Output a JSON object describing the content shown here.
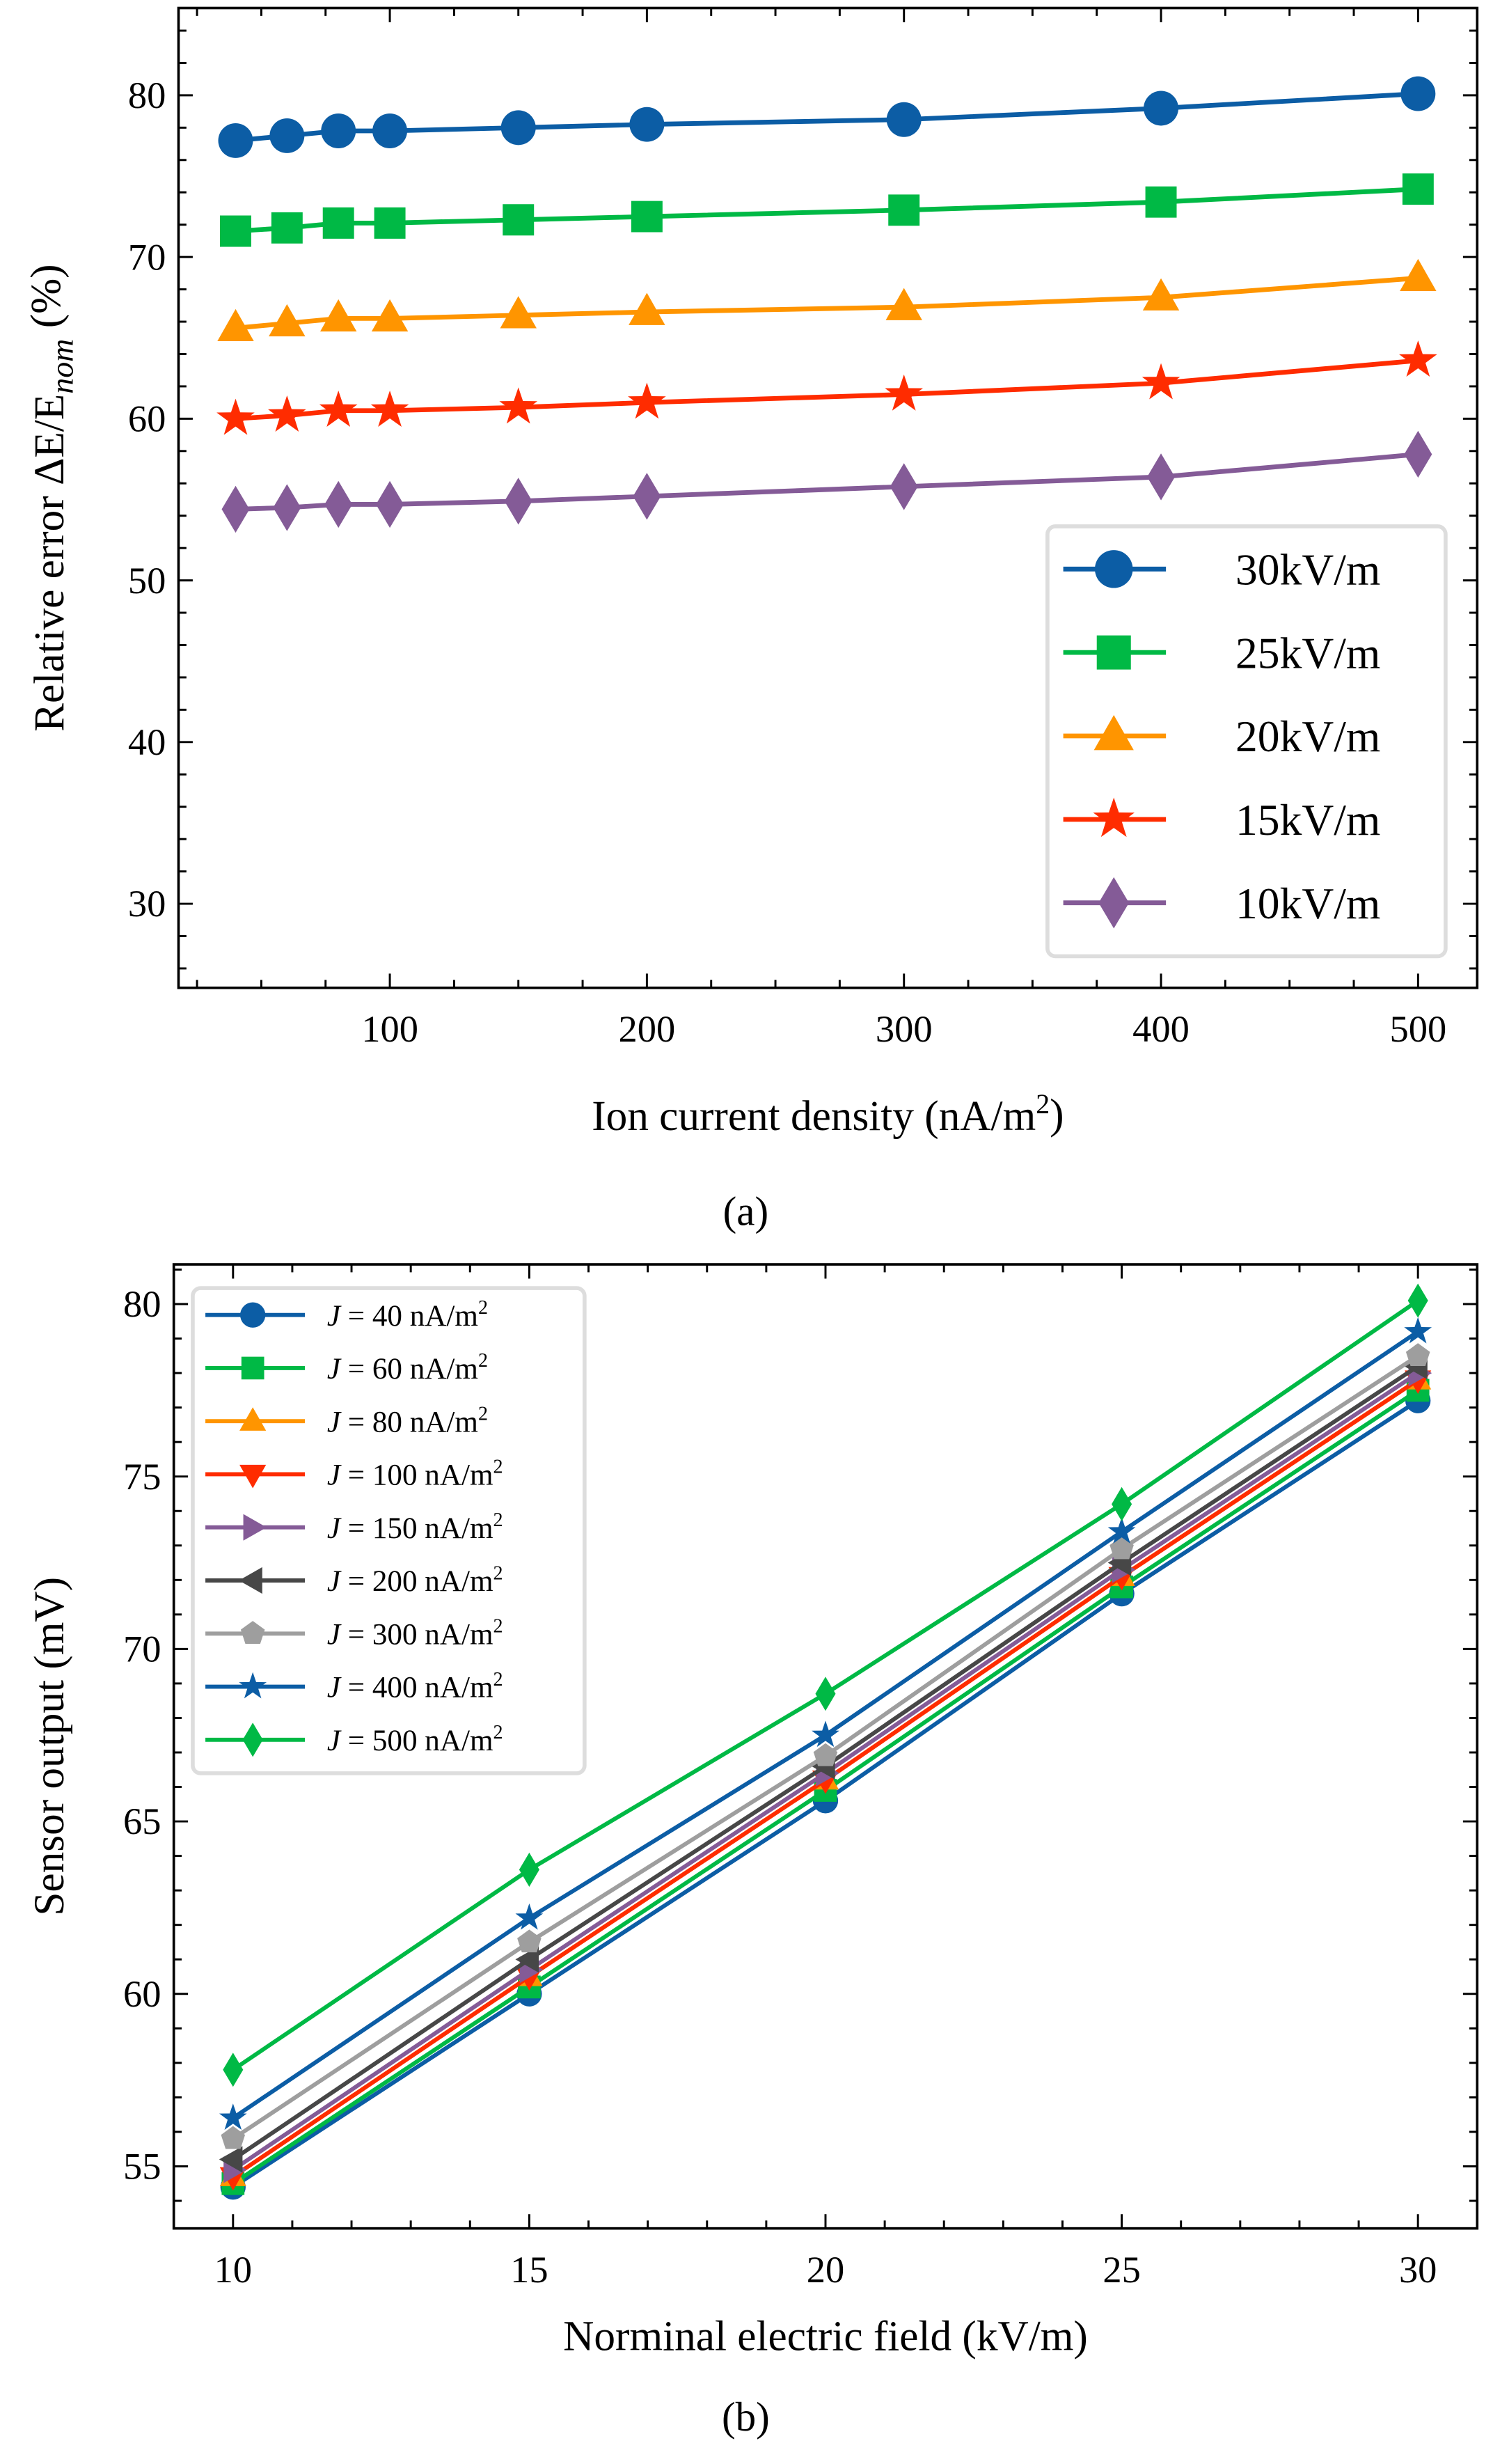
{
  "chart_data": [
    {
      "type": "line",
      "panel_label": "(a)",
      "xlabel": "Ion current density (nA/m2)",
      "ylabel": "Relative error ΔE/E_nom (%)",
      "xlim": [
        17.8,
        523
      ],
      "ylim": [
        24.8,
        85.4
      ],
      "xticks": [
        100,
        200,
        300,
        400,
        500
      ],
      "yticks": [
        30,
        40,
        50,
        60,
        70,
        80
      ],
      "grid": false,
      "legend_position": "bottom-right",
      "x": [
        40,
        60,
        80,
        100,
        150,
        200,
        300,
        400,
        500
      ],
      "series": [
        {
          "name": "30kV/m",
          "color": "#0C5DA5",
          "marker": "circle",
          "values": [
            77.2,
            77.5,
            77.8,
            77.8,
            78.0,
            78.2,
            78.5,
            79.2,
            80.1
          ]
        },
        {
          "name": "25kV/m",
          "color": "#00B945",
          "marker": "square",
          "values": [
            71.6,
            71.8,
            72.1,
            72.1,
            72.3,
            72.5,
            72.9,
            73.4,
            74.2
          ]
        },
        {
          "name": "20kV/m",
          "color": "#FF9500",
          "marker": "triangle-up",
          "values": [
            65.6,
            65.9,
            66.2,
            66.2,
            66.4,
            66.6,
            66.9,
            67.5,
            68.7
          ]
        },
        {
          "name": "15kV/m",
          "color": "#FF2C00",
          "marker": "star",
          "values": [
            60.0,
            60.2,
            60.5,
            60.5,
            60.7,
            61.0,
            61.5,
            62.2,
            63.6
          ]
        },
        {
          "name": "10kV/m",
          "color": "#845B97",
          "marker": "diamond",
          "values": [
            54.4,
            54.5,
            54.7,
            54.7,
            54.9,
            55.2,
            55.8,
            56.4,
            57.8
          ]
        }
      ]
    },
    {
      "type": "line",
      "panel_label": "(b)",
      "xlabel": "Norminal electric field (kV/m)",
      "ylabel": "Sensor output (mV)",
      "xlim": [
        9.0,
        31.0
      ],
      "ylim": [
        53.2,
        81.15
      ],
      "xticks": [
        10,
        15,
        20,
        25,
        30
      ],
      "yticks": [
        55,
        60,
        65,
        70,
        75,
        80
      ],
      "grid": false,
      "legend_position": "top-left",
      "x": [
        10,
        15,
        20,
        25,
        30
      ],
      "series": [
        {
          "name": "J = 40 nA/m2",
          "color": "#0C5DA5",
          "marker": "circle",
          "values": [
            54.4,
            60.0,
            65.6,
            71.6,
            77.2
          ]
        },
        {
          "name": "J = 60 nA/m2",
          "color": "#00B945",
          "marker": "square",
          "values": [
            54.5,
            60.2,
            65.9,
            71.8,
            77.5
          ]
        },
        {
          "name": "J = 80 nA/m2",
          "color": "#FF9500",
          "marker": "triangle-up",
          "values": [
            54.7,
            60.5,
            66.2,
            72.1,
            77.8
          ]
        },
        {
          "name": "J = 100 nA/m2",
          "color": "#FF2C00",
          "marker": "triangle-down",
          "values": [
            54.7,
            60.5,
            66.2,
            72.1,
            77.8
          ]
        },
        {
          "name": "J = 150 nA/m2",
          "color": "#845B97",
          "marker": "triangle-right",
          "values": [
            54.9,
            60.7,
            66.4,
            72.3,
            78.0
          ]
        },
        {
          "name": "J = 200 nA/m2",
          "color": "#474747",
          "marker": "triangle-left",
          "values": [
            55.2,
            61.0,
            66.6,
            72.5,
            78.2
          ]
        },
        {
          "name": "J = 300 nA/m2",
          "color": "#9E9E9E",
          "marker": "pentagon",
          "values": [
            55.8,
            61.5,
            66.9,
            72.9,
            78.5
          ]
        },
        {
          "name": "J = 400 nA/m2",
          "color": "#0C5DA5",
          "marker": "star",
          "values": [
            56.4,
            62.2,
            67.5,
            73.4,
            79.2
          ]
        },
        {
          "name": "J = 500 nA/m2",
          "color": "#00B945",
          "marker": "diamond",
          "values": [
            57.8,
            63.6,
            68.7,
            74.2,
            80.1
          ]
        }
      ]
    }
  ]
}
